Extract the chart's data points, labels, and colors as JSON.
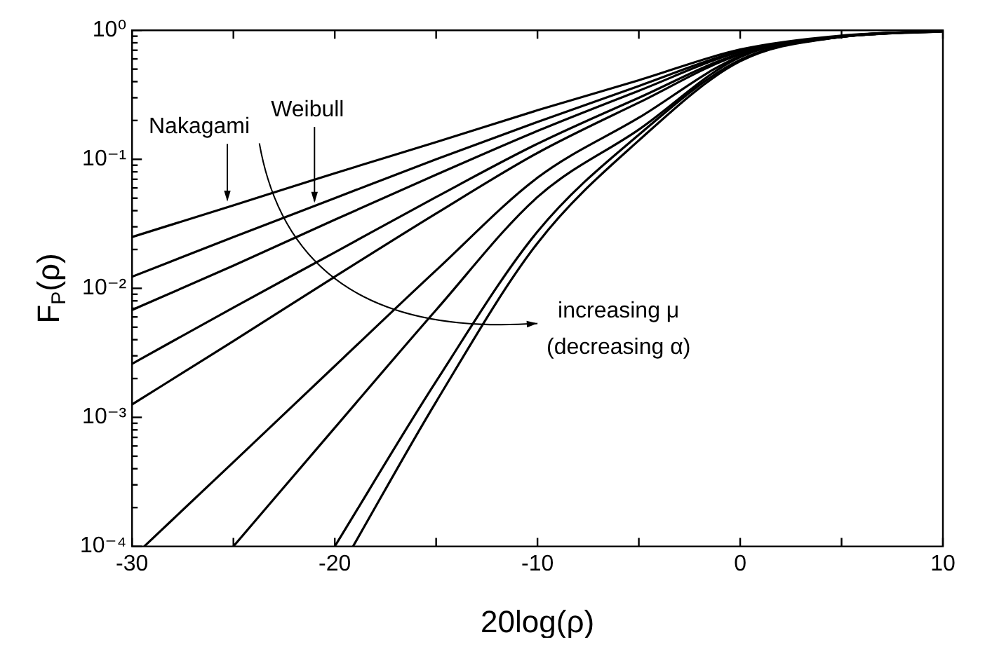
{
  "chart_data": {
    "type": "line",
    "xlabel": "20log(ρ)",
    "ylabel": "F$_{P}$(ρ)",
    "log": "y",
    "marker": "none",
    "line_style": "solid",
    "xlim": [
      -30,
      10
    ],
    "xticks": [
      -30,
      {
        "value": -25,
        "label": null
      },
      -20,
      {
        "value": -15,
        "label": null
      },
      -10,
      {
        "value": -5,
        "label": null
      },
      0,
      {
        "value": 5,
        "label": null
      },
      10
    ],
    "ylim": [
      0.0001,
      1
    ],
    "yticks": [
      {
        "value": 0.0001,
        "label": "10⁻⁴"
      },
      {
        "value": 0.0002,
        "label": null
      },
      {
        "value": 0.0003,
        "label": null
      },
      {
        "value": 0.0004,
        "label": null
      },
      {
        "value": 0.0005,
        "label": null
      },
      {
        "value": 0.0006,
        "label": null
      },
      {
        "value": 0.0007,
        "label": null
      },
      {
        "value": 0.0008,
        "label": null
      },
      {
        "value": 0.0009,
        "label": null
      },
      {
        "value": 0.001,
        "label": "10⁻³"
      },
      {
        "value": 0.002,
        "label": null
      },
      {
        "value": 0.003,
        "label": null
      },
      {
        "value": 0.004,
        "label": null
      },
      {
        "value": 0.005,
        "label": null
      },
      {
        "value": 0.006,
        "label": null
      },
      {
        "value": 0.007,
        "label": null
      },
      {
        "value": 0.008,
        "label": null
      },
      {
        "value": 0.009,
        "label": null
      },
      {
        "value": 0.01,
        "label": "10⁻²"
      },
      {
        "value": 0.02,
        "label": null
      },
      {
        "value": 0.03,
        "label": null
      },
      {
        "value": 0.04,
        "label": null
      },
      {
        "value": 0.05,
        "label": null
      },
      {
        "value": 0.06,
        "label": null
      },
      {
        "value": 0.07,
        "label": null
      },
      {
        "value": 0.08,
        "label": null
      },
      {
        "value": 0.09,
        "label": null
      },
      {
        "value": 0.1,
        "label": "10⁻¹"
      },
      {
        "value": 0.2,
        "label": null
      },
      {
        "value": 0.3,
        "label": null
      },
      {
        "value": 0.4,
        "label": null
      },
      {
        "value": 0.5,
        "label": null
      },
      {
        "value": 0.6,
        "label": null
      },
      {
        "value": 0.7,
        "label": null
      },
      {
        "value": 0.8,
        "label": null
      },
      {
        "value": 0.9,
        "label": null
      },
      {
        "value": 1,
        "label": "10⁰"
      }
    ],
    "series": [
      {
        "color": "#000000",
        "x": [
          -30,
          -25,
          -20,
          -15,
          -10,
          -5,
          0,
          5,
          10
        ],
        "values": [
          0.025,
          0.044,
          0.078,
          0.136,
          0.24,
          0.41,
          0.71,
          0.91,
          0.98
        ]
      },
      {
        "color": "#000000",
        "x": [
          -30,
          -25,
          -20,
          -15,
          -10,
          -5,
          0,
          5,
          10
        ],
        "values": [
          0.0123,
          0.025,
          0.05,
          0.1,
          0.195,
          0.37,
          0.69,
          0.9,
          0.98
        ]
      },
      {
        "color": "#000000",
        "x": [
          -30,
          -25,
          -20,
          -15,
          -10,
          -5,
          0,
          5,
          10
        ],
        "values": [
          0.0068,
          0.015,
          0.034,
          0.076,
          0.166,
          0.34,
          0.68,
          0.9,
          0.99
        ]
      },
      {
        "color": "#000000",
        "x": [
          -30,
          -25,
          -20,
          -15,
          -10,
          -5,
          0,
          5,
          10
        ],
        "values": [
          0.0026,
          0.0071,
          0.019,
          0.051,
          0.132,
          0.3,
          0.66,
          0.89,
          0.99
        ]
      },
      {
        "color": "#000000",
        "x": [
          -30,
          -25,
          -20,
          -15,
          -10,
          -5,
          0,
          5,
          10
        ],
        "values": [
          0.00126,
          0.0039,
          0.0123,
          0.038,
          0.112,
          0.275,
          0.65,
          0.89,
          0.99
        ]
      },
      {
        "color": "#000000",
        "x": [
          -29.4,
          -25,
          -20,
          -15,
          -10,
          -5,
          0,
          5,
          10
        ],
        "values": [
          0.0001,
          0.00045,
          0.0025,
          0.0138,
          0.072,
          0.21,
          0.63,
          0.89,
          0.99
        ]
      },
      {
        "color": "#000000",
        "x": [
          -25,
          -20,
          -15,
          -10,
          -5,
          0,
          5,
          10
        ],
        "values": [
          0.0001,
          0.00083,
          0.0068,
          0.051,
          0.17,
          0.62,
          0.89,
          0.99
        ]
      },
      {
        "color": "#000000",
        "x": [
          -20,
          -15,
          -10,
          -5,
          0,
          5,
          10
        ],
        "values": [
          0.0001,
          0.0019,
          0.0275,
          0.155,
          0.59,
          0.89,
          0.99
        ]
      },
      {
        "color": "#000000",
        "x": [
          -19.1,
          -15,
          -10,
          -5,
          0,
          5,
          10
        ],
        "values": [
          0.0001,
          0.00132,
          0.0224,
          0.14,
          0.575,
          0.89,
          0.99
        ]
      }
    ],
    "annotations": [
      {
        "text": "Nakagami",
        "x": -25.3,
        "y": 0.046
      },
      {
        "text": "Weibull",
        "x": -21,
        "y": 0.045
      },
      "increasing μ",
      "(decreasing α)"
    ]
  }
}
